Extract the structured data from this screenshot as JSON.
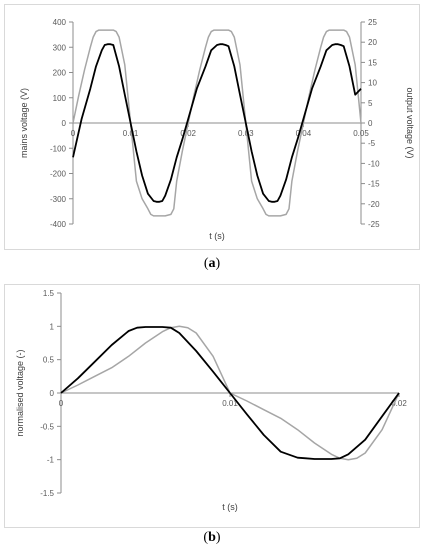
{
  "chart_data": [
    {
      "type": "line",
      "panel_label": "a",
      "xlabel": "t (s)",
      "ylabel": "mains voltage (V)",
      "y2label": "output voltage (V)",
      "xlim": [
        0,
        0.05
      ],
      "ylim": [
        -400,
        400
      ],
      "y2lim": [
        -25,
        25
      ],
      "xticks": [
        "0",
        "0.01",
        "0.02",
        "0.03",
        "0.04",
        "0.05"
      ],
      "yticks": [
        "400",
        "300",
        "200",
        "100",
        "0",
        "-100",
        "-200",
        "-300",
        "-400"
      ],
      "y2ticks": [
        "25",
        "20",
        "15",
        "10",
        "5",
        "0",
        "-5",
        "-10",
        "-15",
        "-20",
        "-25"
      ],
      "grid": false,
      "series": [
        {
          "color": "#a6a6a6",
          "axis": "left",
          "x": [
            0,
            0.001,
            0.002,
            0.003,
            0.0035,
            0.004,
            0.0045,
            0.005,
            0.006,
            0.007,
            0.0075,
            0.008,
            0.009,
            0.01,
            0.011,
            0.012,
            0.013,
            0.0135,
            0.014,
            0.0145,
            0.015,
            0.016,
            0.017,
            0.0175,
            0.018,
            0.019,
            0.02,
            0.021,
            0.022,
            0.023,
            0.0235,
            0.024,
            0.0245,
            0.025,
            0.026,
            0.027,
            0.0275,
            0.028,
            0.029,
            0.03,
            0.031,
            0.032,
            0.033,
            0.0335,
            0.034,
            0.0345,
            0.035,
            0.036,
            0.037,
            0.0375,
            0.038,
            0.039,
            0.04,
            0.041,
            0.042,
            0.043,
            0.0435,
            0.044,
            0.0445,
            0.045,
            0.046,
            0.047,
            0.0475,
            0.048,
            0.049,
            0.05
          ],
          "y": [
            0,
            110,
            210,
            300,
            340,
            362,
            368,
            368,
            368,
            368,
            362,
            340,
            230,
            0,
            -230,
            -300,
            -340,
            -362,
            -368,
            -368,
            -368,
            -368,
            -362,
            -340,
            -230,
            -110,
            0,
            110,
            210,
            300,
            340,
            362,
            368,
            368,
            368,
            368,
            362,
            340,
            230,
            0,
            -230,
            -300,
            -340,
            -362,
            -368,
            -368,
            -368,
            -368,
            -362,
            -340,
            -230,
            -110,
            0,
            110,
            210,
            300,
            340,
            362,
            368,
            368,
            368,
            368,
            362,
            340,
            230,
            0
          ]
        },
        {
          "color": "#000000",
          "axis": "right",
          "x": [
            0,
            0.0015,
            0.003,
            0.004,
            0.005,
            0.0055,
            0.006,
            0.0065,
            0.007,
            0.008,
            0.009,
            0.01,
            0.011,
            0.012,
            0.013,
            0.014,
            0.0145,
            0.015,
            0.0155,
            0.016,
            0.017,
            0.018,
            0.019,
            0.02,
            0.0215,
            0.023,
            0.024,
            0.025,
            0.0255,
            0.026,
            0.0265,
            0.027,
            0.028,
            0.029,
            0.03,
            0.031,
            0.032,
            0.033,
            0.034,
            0.0345,
            0.035,
            0.0355,
            0.036,
            0.037,
            0.038,
            0.039,
            0.04,
            0.0415,
            0.043,
            0.044,
            0.045,
            0.0455,
            0.046,
            0.0465,
            0.047,
            0.048,
            0.049,
            0.05
          ],
          "y": [
            -8.5,
            1,
            8.5,
            14,
            18,
            19.3,
            19.5,
            19.5,
            19.3,
            14,
            7,
            0,
            -7,
            -13,
            -17.5,
            -19.3,
            -19.5,
            -19.5,
            -19.3,
            -18,
            -14,
            -8.5,
            -4,
            1,
            8.5,
            14,
            18,
            19.3,
            19.5,
            19.5,
            19.3,
            19,
            14,
            7,
            0,
            -7,
            -13,
            -17.5,
            -19.3,
            -19.5,
            -19.5,
            -19.3,
            -18,
            -14,
            -8.5,
            -4,
            1,
            8.5,
            14,
            18,
            19.3,
            19.5,
            19.5,
            19.3,
            19,
            14,
            7,
            8.5
          ]
        }
      ]
    },
    {
      "type": "line",
      "panel_label": "b",
      "xlabel": "t (s)",
      "ylabel": "normalised voltage (-)",
      "xlim": [
        0,
        0.02
      ],
      "ylim": [
        -1.5,
        1.5
      ],
      "xticks": [
        "0",
        "0.01",
        "0.02"
      ],
      "yticks": [
        "1.5",
        "1",
        "0.5",
        "0",
        "-0.5",
        "-1",
        "-1.5"
      ],
      "grid": false,
      "series": [
        {
          "color": "#a6a6a6",
          "x": [
            0,
            0.001,
            0.002,
            0.003,
            0.004,
            0.005,
            0.006,
            0.0065,
            0.007,
            0.0075,
            0.008,
            0.009,
            0.01,
            0.011,
            0.012,
            0.013,
            0.014,
            0.015,
            0.016,
            0.0165,
            0.017,
            0.0175,
            0.018,
            0.019,
            0.02
          ],
          "y": [
            0,
            0.12,
            0.25,
            0.38,
            0.55,
            0.75,
            0.92,
            0.98,
            1.0,
            0.98,
            0.9,
            0.55,
            0,
            -0.12,
            -0.25,
            -0.38,
            -0.55,
            -0.75,
            -0.92,
            -0.98,
            -1.0,
            -0.98,
            -0.9,
            -0.55,
            0
          ]
        },
        {
          "color": "#000000",
          "x": [
            0,
            0.001,
            0.002,
            0.003,
            0.004,
            0.0045,
            0.005,
            0.006,
            0.0065,
            0.007,
            0.008,
            0.009,
            0.01,
            0.011,
            0.012,
            0.013,
            0.014,
            0.0145,
            0.015,
            0.016,
            0.0165,
            0.017,
            0.018,
            0.019,
            0.02
          ],
          "y": [
            0,
            0.22,
            0.47,
            0.72,
            0.93,
            0.98,
            0.99,
            0.99,
            0.98,
            0.9,
            0.63,
            0.32,
            0,
            -0.32,
            -0.63,
            -0.88,
            -0.97,
            -0.98,
            -0.99,
            -0.99,
            -0.98,
            -0.92,
            -0.7,
            -0.35,
            0
          ]
        }
      ]
    }
  ],
  "captions": {
    "a": "a",
    "b": "b"
  }
}
